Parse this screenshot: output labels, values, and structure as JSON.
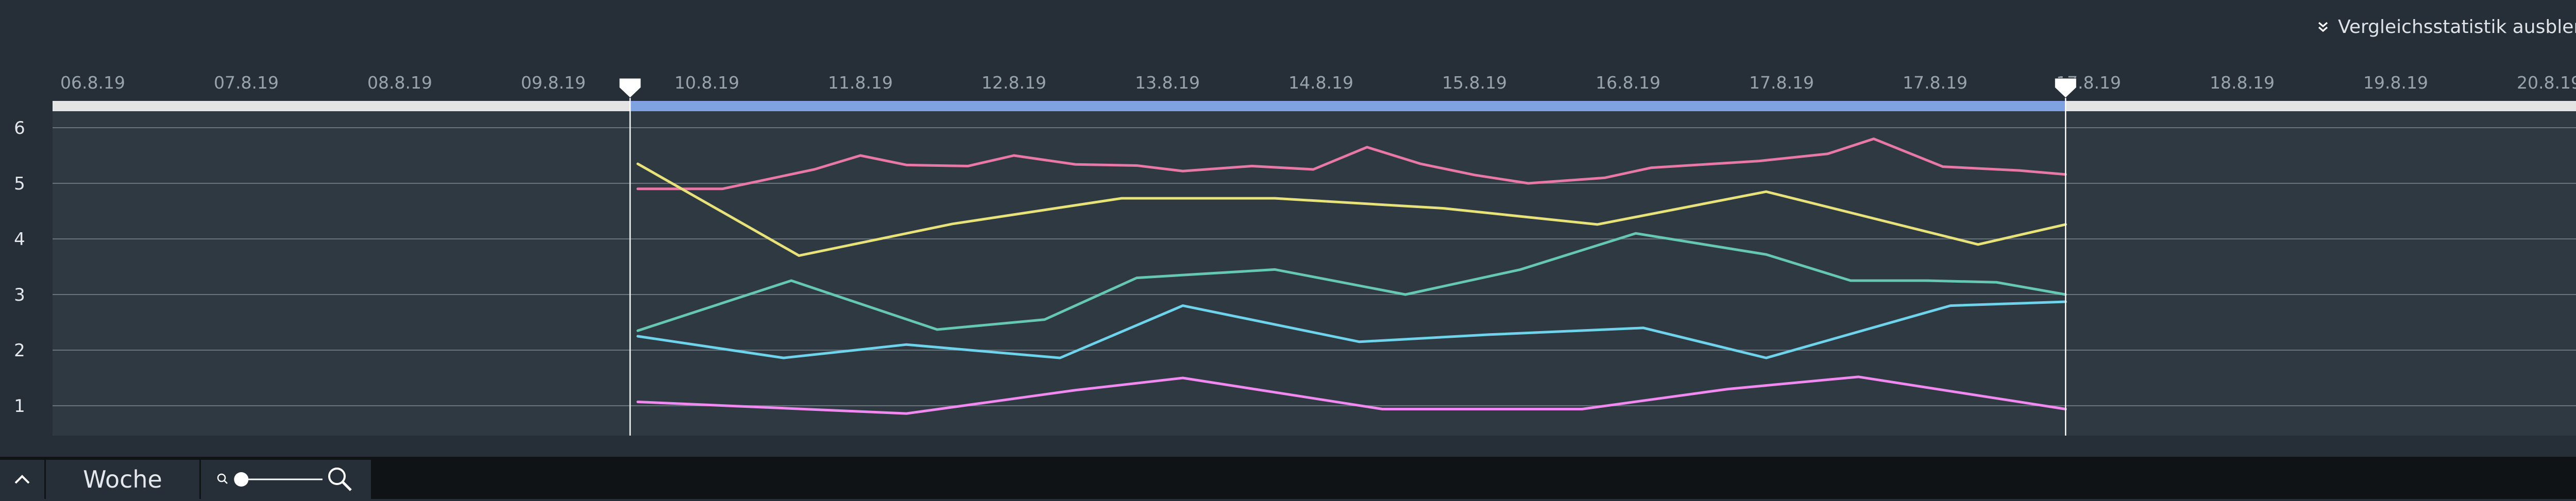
{
  "header": {
    "toggle_label": "Vergleichsstatistik ausblenden",
    "toggle_icon": "double-chevron-down-icon"
  },
  "chart_data": {
    "type": "line",
    "title": "",
    "xlabel": "",
    "ylabel": "",
    "x_tick_labels": [
      "06.8.19",
      "07.8.19",
      "08.8.19",
      "09.8.19",
      "10.8.19",
      "11.8.19",
      "12.8.19",
      "13.8.19",
      "14.8.19",
      "15.8.19",
      "16.8.19",
      "17.8.19",
      "17.8.19",
      "17.8.19",
      "18.8.19",
      "19.8.19",
      "20.8.19"
    ],
    "xlim": [
      0,
      16.5
    ],
    "y_ticks": [
      1,
      2,
      3,
      4,
      5,
      6
    ],
    "ylim": [
      0.5,
      6.4
    ],
    "grid": true,
    "legend": "none",
    "selection": {
      "start": 3.5,
      "end": 12.85
    },
    "series": [
      {
        "color": "#e879a6",
        "x": [
          3.55,
          4.1,
          4.7,
          5.0,
          5.3,
          5.7,
          6.0,
          6.4,
          6.8,
          7.1,
          7.55,
          7.95,
          8.3,
          8.65,
          9.0,
          9.35,
          9.85,
          10.15,
          10.5,
          10.85,
          11.3,
          11.6,
          12.05,
          12.55,
          12.85
        ],
        "y": [
          4.9,
          4.9,
          5.25,
          5.5,
          5.33,
          5.31,
          5.5,
          5.34,
          5.32,
          5.22,
          5.31,
          5.25,
          5.65,
          5.35,
          5.15,
          5.0,
          5.1,
          5.28,
          5.34,
          5.4,
          5.53,
          5.8,
          5.3,
          5.23,
          5.16
        ]
      },
      {
        "color": "#e8e27a",
        "x": [
          3.55,
          4.6,
          5.6,
          6.7,
          7.7,
          8.8,
          9.8,
          10.9,
          12.28,
          12.85
        ],
        "y": [
          5.35,
          3.7,
          4.27,
          4.73,
          4.73,
          4.55,
          4.26,
          4.85,
          3.9,
          4.26
        ]
      },
      {
        "color": "#67c8b2",
        "x": [
          3.55,
          4.55,
          5.5,
          6.2,
          6.8,
          7.7,
          8.55,
          9.3,
          10.05,
          10.9,
          11.45,
          11.95,
          12.4,
          12.85
        ],
        "y": [
          2.35,
          3.25,
          2.37,
          2.55,
          3.3,
          3.45,
          3.0,
          3.45,
          4.1,
          3.72,
          3.25,
          3.25,
          3.22,
          3.0
        ]
      },
      {
        "color": "#6fd3ec",
        "x": [
          3.55,
          4.5,
          5.3,
          6.3,
          7.1,
          8.25,
          9.1,
          10.1,
          10.9,
          12.1,
          12.85
        ],
        "y": [
          2.25,
          1.86,
          2.1,
          1.86,
          2.8,
          2.15,
          2.28,
          2.4,
          1.86,
          2.8,
          2.87
        ]
      },
      {
        "color": "#f08af0",
        "x": [
          3.55,
          5.3,
          6.4,
          7.1,
          8.4,
          9.7,
          10.65,
          11.5,
          12.85
        ],
        "y": [
          1.07,
          0.86,
          1.28,
          1.5,
          0.94,
          0.94,
          1.3,
          1.52,
          0.94
        ]
      }
    ]
  },
  "bottom_bar": {
    "collapse_icon": "chevron-up-icon",
    "granularity_label": "Woche",
    "zoom_level": 0.05,
    "zoom_small_icon": "zoom-out-icon",
    "zoom_large_icon": "zoom-in-icon"
  }
}
